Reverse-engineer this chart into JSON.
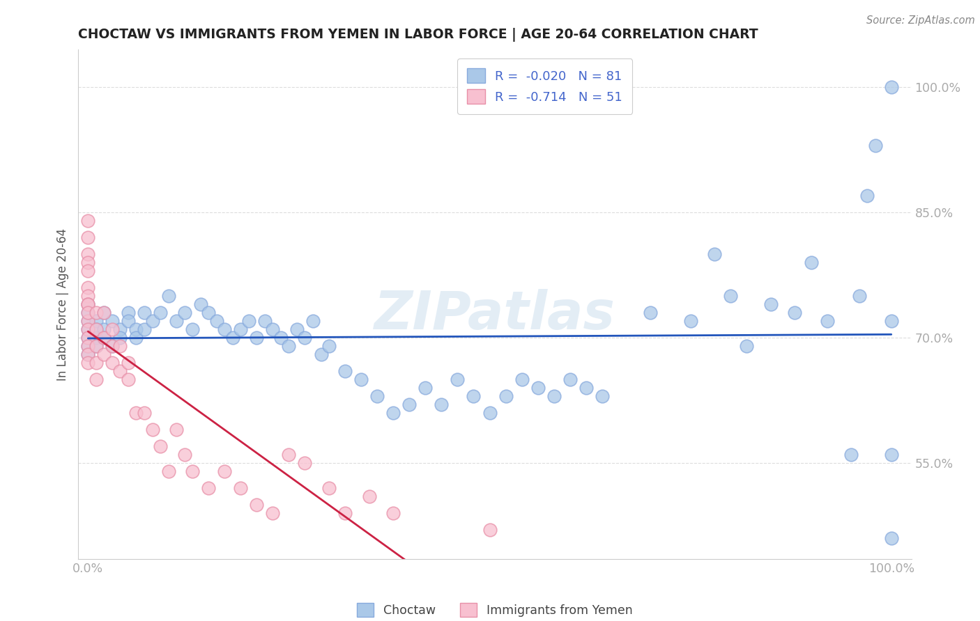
{
  "title": "CHOCTAW VS IMMIGRANTS FROM YEMEN IN LABOR FORCE | AGE 20-64 CORRELATION CHART",
  "source": "Source: ZipAtlas.com",
  "ylabel": "In Labor Force | Age 20-64",
  "choctaw_R": "-0.020",
  "choctaw_N": "81",
  "yemen_R": "-0.714",
  "yemen_N": "51",
  "choctaw_color": "#aac8e8",
  "choctaw_edge": "#88aadd",
  "yemen_color": "#f8c0d0",
  "yemen_edge": "#e890a8",
  "choctaw_line_color": "#2255bb",
  "yemen_line_color": "#cc2244",
  "background_color": "#ffffff",
  "watermark": "ZIPatlas",
  "title_color": "#222222",
  "axis_label_color": "#5577cc",
  "grid_color": "#dddddd",
  "legend_text_color": "#4466cc",
  "bottom_legend_color": "#444444",
  "ylim_low": 0.435,
  "ylim_high": 1.045,
  "xlim_low": -0.012,
  "xlim_high": 1.025,
  "choctaw_x": [
    0.0,
    0.0,
    0.0,
    0.0,
    0.0,
    0.0,
    0.0,
    0.01,
    0.01,
    0.01,
    0.01,
    0.02,
    0.02,
    0.02,
    0.03,
    0.03,
    0.04,
    0.04,
    0.05,
    0.05,
    0.06,
    0.06,
    0.07,
    0.07,
    0.08,
    0.09,
    0.1,
    0.11,
    0.12,
    0.13,
    0.14,
    0.15,
    0.16,
    0.17,
    0.18,
    0.19,
    0.2,
    0.21,
    0.22,
    0.23,
    0.24,
    0.25,
    0.26,
    0.27,
    0.28,
    0.29,
    0.3,
    0.32,
    0.34,
    0.36,
    0.38,
    0.4,
    0.42,
    0.44,
    0.46,
    0.48,
    0.5,
    0.52,
    0.54,
    0.56,
    0.58,
    0.6,
    0.62,
    0.64,
    0.7,
    0.75,
    0.78,
    0.8,
    0.82,
    0.85,
    0.88,
    0.9,
    0.92,
    0.95,
    0.96,
    0.97,
    0.98,
    1.0,
    1.0,
    1.0,
    1.0
  ],
  "choctaw_y": [
    0.7,
    0.71,
    0.72,
    0.73,
    0.68,
    0.69,
    0.74,
    0.72,
    0.7,
    0.71,
    0.69,
    0.73,
    0.71,
    0.7,
    0.72,
    0.69,
    0.71,
    0.7,
    0.73,
    0.72,
    0.71,
    0.7,
    0.73,
    0.71,
    0.72,
    0.73,
    0.75,
    0.72,
    0.73,
    0.71,
    0.74,
    0.73,
    0.72,
    0.71,
    0.7,
    0.71,
    0.72,
    0.7,
    0.72,
    0.71,
    0.7,
    0.69,
    0.71,
    0.7,
    0.72,
    0.68,
    0.69,
    0.66,
    0.65,
    0.63,
    0.61,
    0.62,
    0.64,
    0.62,
    0.65,
    0.63,
    0.61,
    0.63,
    0.65,
    0.64,
    0.63,
    0.65,
    0.64,
    0.63,
    0.73,
    0.72,
    0.8,
    0.75,
    0.69,
    0.74,
    0.73,
    0.79,
    0.72,
    0.56,
    0.75,
    0.87,
    0.93,
    0.72,
    0.46,
    0.56,
    1.0
  ],
  "yemen_x": [
    0.0,
    0.0,
    0.0,
    0.0,
    0.0,
    0.0,
    0.0,
    0.0,
    0.0,
    0.0,
    0.0,
    0.0,
    0.0,
    0.0,
    0.0,
    0.0,
    0.01,
    0.01,
    0.01,
    0.01,
    0.01,
    0.02,
    0.02,
    0.02,
    0.03,
    0.03,
    0.03,
    0.04,
    0.04,
    0.05,
    0.05,
    0.06,
    0.07,
    0.08,
    0.09,
    0.1,
    0.11,
    0.12,
    0.13,
    0.15,
    0.17,
    0.19,
    0.21,
    0.23,
    0.25,
    0.27,
    0.3,
    0.32,
    0.35,
    0.38,
    0.5
  ],
  "yemen_y": [
    0.84,
    0.82,
    0.8,
    0.79,
    0.78,
    0.76,
    0.75,
    0.74,
    0.72,
    0.71,
    0.7,
    0.69,
    0.68,
    0.67,
    0.74,
    0.73,
    0.73,
    0.71,
    0.69,
    0.67,
    0.65,
    0.73,
    0.7,
    0.68,
    0.71,
    0.69,
    0.67,
    0.69,
    0.66,
    0.67,
    0.65,
    0.61,
    0.61,
    0.59,
    0.57,
    0.54,
    0.59,
    0.56,
    0.54,
    0.52,
    0.54,
    0.52,
    0.5,
    0.49,
    0.56,
    0.55,
    0.52,
    0.49,
    0.51,
    0.49,
    0.47
  ]
}
